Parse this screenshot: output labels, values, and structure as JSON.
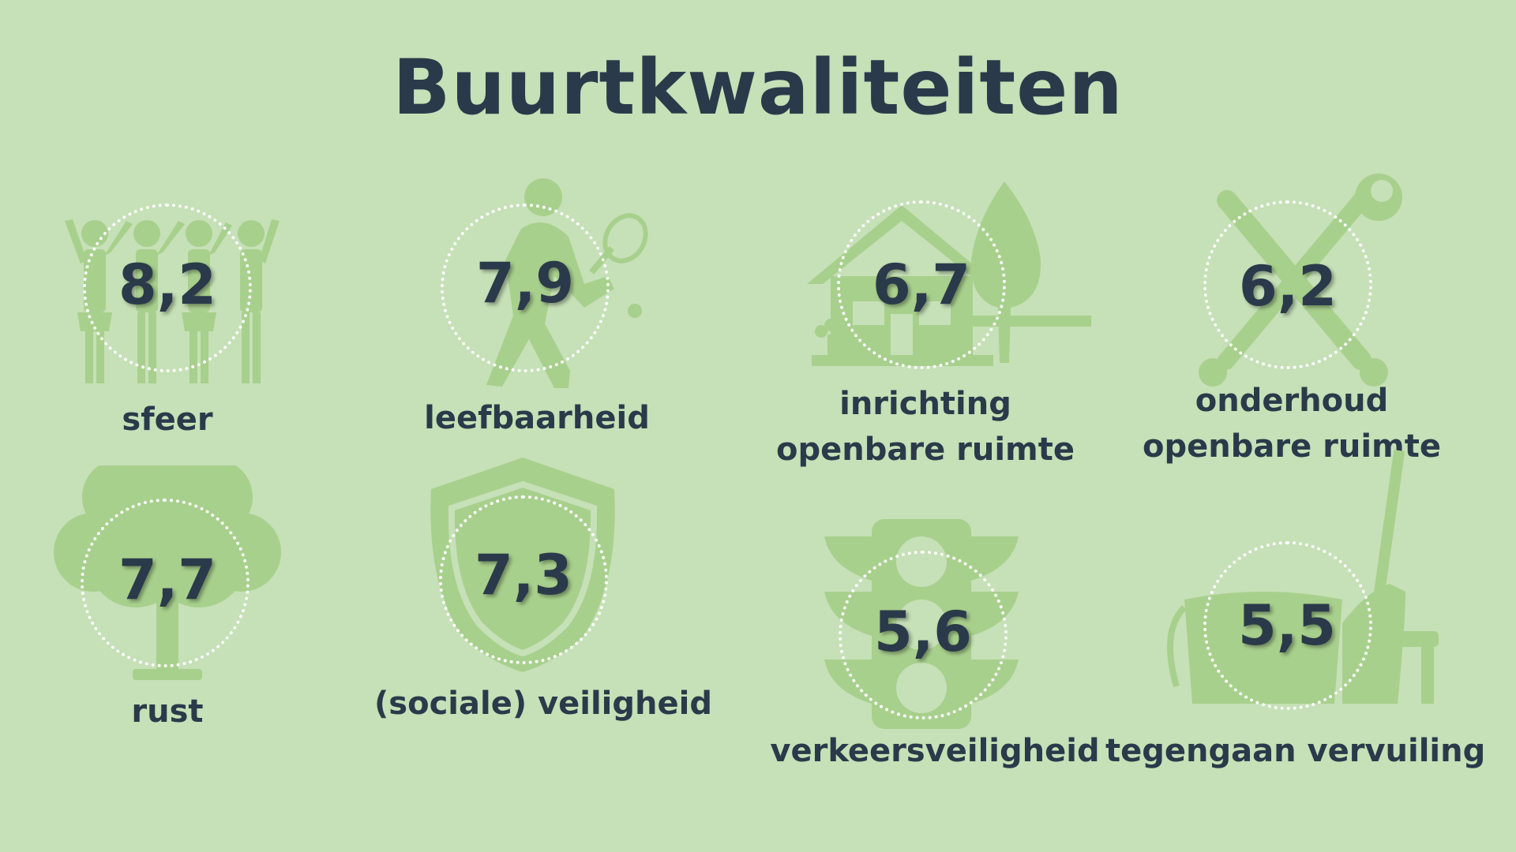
{
  "title": "Buurtkwaliteiten",
  "colors": {
    "background": "#c6e0b7",
    "icon": "#a8d08d",
    "text": "#2b3a4a",
    "circle": "#ffffff"
  },
  "items": [
    {
      "score": "8,2",
      "label_1": "sfeer",
      "label_2": "",
      "icon": "people-icon"
    },
    {
      "score": "7,9",
      "label_1": "leefbaarheid",
      "label_2": "",
      "icon": "tennis-player-icon"
    },
    {
      "score": "6,7",
      "label_1": "inrichting",
      "label_2": "openbare ruimte",
      "icon": "house-tree-icon"
    },
    {
      "score": "6,2",
      "label_1": "onderhoud",
      "label_2": "openbare ruimte",
      "icon": "tools-icon"
    },
    {
      "score": "7,7",
      "label_1": "rust",
      "label_2": "",
      "icon": "tree-icon"
    },
    {
      "score": "7,3",
      "label_1": "(sociale) veiligheid",
      "label_2": "",
      "icon": "shield-icon"
    },
    {
      "score": "5,6",
      "label_1": "verkeersveiligheid",
      "label_2": "",
      "icon": "traffic-light-icon"
    },
    {
      "score": "5,5",
      "label_1": "tegengaan vervuiling",
      "label_2": "",
      "icon": "bucket-broom-icon"
    }
  ]
}
